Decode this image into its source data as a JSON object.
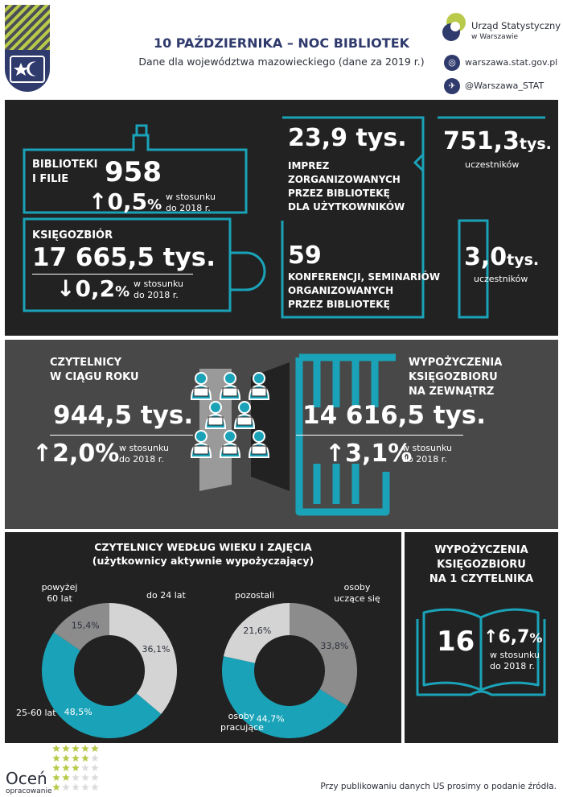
{
  "header": {
    "title": "10 PAŹDZIERNIKA – NOC BIBLIOTEK",
    "subtitle": "Dane dla województwa mazowieckiego (dane za 2019 r.)",
    "brand_name": "Urząd Statystyczny",
    "brand_sub": "w Warszawie",
    "website": "warszawa.stat.gov.pl",
    "twitter": "@Warszawa_STAT",
    "web_icon": "globe-icon",
    "twitter_icon": "bird-icon"
  },
  "libraries": {
    "label_1": "BIBLIOTEKI",
    "label_2": "I FILIE",
    "count": "958",
    "change": "0,5",
    "change_unit": "%",
    "change_direction": "up",
    "compare_1": "w stosunku",
    "compare_2": "do 2018 r."
  },
  "collection": {
    "label": "KSIĘGOZBIÓR",
    "value": "17 665,5 tys.",
    "change": "0,2",
    "change_unit": "%",
    "change_direction": "down",
    "compare_1": "w stosunku",
    "compare_2": "do 2018 r."
  },
  "events": {
    "value": "23,9 tys.",
    "label_1": "IMPREZ",
    "label_2": "ZORGANIZOWANYCH",
    "label_3": "PRZEZ BIBLIOTEKĘ",
    "label_4": "DLA UŻYTKOWNIKÓW",
    "participants_value": "751,3",
    "participants_unit": "tys.",
    "participants_label": "uczestników"
  },
  "conferences": {
    "value": "59",
    "label_1": "KONFERENCJI, SEMINARIÓW",
    "label_2": "ORGANIZOWANYCH",
    "label_3": "PRZEZ BIBLIOTEKĘ",
    "participants_value": "3,0",
    "participants_unit": "tys.",
    "participants_label": "uczestników"
  },
  "readers": {
    "label_1": "CZYTELNICY",
    "label_2": "W CIĄGU ROKU",
    "value": "944,5 tys.",
    "change": "2,0",
    "change_unit": "%",
    "change_direction": "up",
    "compare_1": "w stosunku",
    "compare_2": "do 2018 r."
  },
  "loans": {
    "label_1": "WYPOŻYCZENIA",
    "label_2": "KSIĘGOZBIORU",
    "label_3": "NA ZEWNĄTRZ",
    "value": "14 616,5 tys.",
    "change": "3,1",
    "change_unit": "%",
    "change_direction": "up",
    "compare_1": "w stosunku",
    "compare_2": "do 2018 r."
  },
  "chart_data": [
    {
      "type": "pie",
      "title": "CZYTELNICY WEDŁUG WIEKU I ZAJĘCIA",
      "subtitle": "(użytkownicy aktywnie wypożyczający)",
      "slices": [
        {
          "name": "do 24 lat",
          "value": 36.1,
          "label": "36,1%",
          "color": "#d4d4d4"
        },
        {
          "name": "25-60 lat",
          "value": 48.5,
          "label": "48,5%",
          "color": "#1aa3b8"
        },
        {
          "name_1": "powyżej",
          "name_2": "60 lat",
          "value": 15.4,
          "label": "15,4%",
          "color": "#8c8c8c"
        }
      ]
    },
    {
      "type": "pie",
      "slices": [
        {
          "name_1": "osoby",
          "name_2": "uczące się",
          "value": 33.8,
          "label": "33,8%",
          "color": "#8c8c8c"
        },
        {
          "name_1": "osoby",
          "name_2": "pracujące",
          "value": 44.7,
          "label": "44,7%",
          "color": "#1aa3b8"
        },
        {
          "name": "pozostali",
          "value": 21.6,
          "label": "21,6%",
          "color": "#d4d4d4"
        }
      ]
    }
  ],
  "loans_per_reader": {
    "label_1": "WYPOŻYCZENIA",
    "label_2": "KSIĘGOZBIORU",
    "label_3": "NA 1 CZYTELNIKA",
    "value": "16",
    "change": "6,7",
    "change_unit": "%",
    "change_direction": "up",
    "compare_1": "w stosunku",
    "compare_2": "do 2018 r."
  },
  "footer": {
    "note": "Przy publikowaniu danych US prosimy o podanie źródła.",
    "rate_1": "Oceń",
    "rate_2": "opracowanie",
    "rating_stars": 0
  },
  "colors": {
    "accent": "#1aa3b8",
    "navy": "#2f3a6d",
    "dark": "#222222",
    "gray": "#484848",
    "lime": "#b9c94a"
  }
}
